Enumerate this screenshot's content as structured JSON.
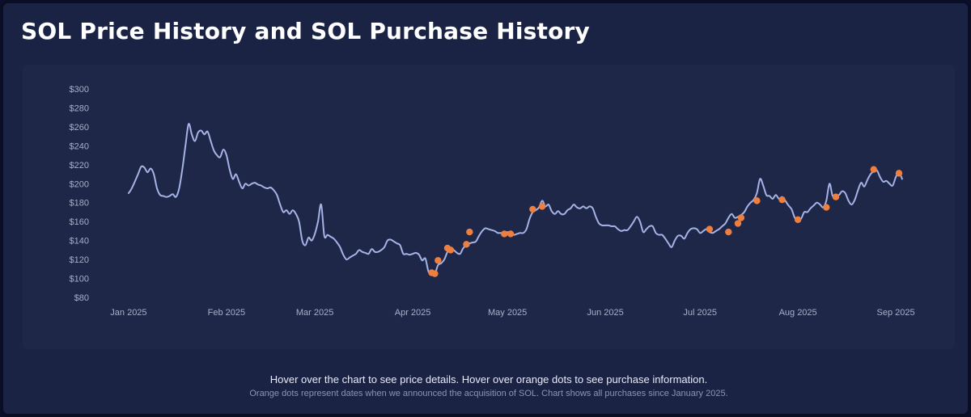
{
  "page": {
    "title": "SOL Price History and SOL Purchase History",
    "hint": "Hover over the chart to see price details. Hover over orange dots to see purchase information.",
    "note": "Orange dots represent dates when we announced the acquisition of SOL. Chart shows all purchases since January 2025."
  },
  "colors": {
    "background": "#1b2345",
    "plot_background": "#1f2748",
    "price_line": "#a6b3e6",
    "purchase_dot": "#ef7f3f",
    "text": "#ffffff",
    "axis_text": "#a8afc9"
  },
  "chart_data": {
    "type": "line",
    "title": "SOL Price History and SOL Purchase History",
    "xlabel": "",
    "ylabel": "",
    "grid": false,
    "y_unit_prefix": "$",
    "ylim": [
      80,
      300
    ],
    "yticks": [
      80,
      100,
      120,
      140,
      160,
      180,
      200,
      220,
      240,
      260,
      280,
      300
    ],
    "xlim": [
      "2024-12-21",
      "2025-09-12"
    ],
    "xticks": [
      {
        "date": "2025-01-01",
        "label": "Jan 2025"
      },
      {
        "date": "2025-02-01",
        "label": "Feb 2025"
      },
      {
        "date": "2025-03-01",
        "label": "Mar 2025"
      },
      {
        "date": "2025-04-01",
        "label": "Apr 2025"
      },
      {
        "date": "2025-05-01",
        "label": "May 2025"
      },
      {
        "date": "2025-06-01",
        "label": "Jun 2025"
      },
      {
        "date": "2025-07-01",
        "label": "Jul 2025"
      },
      {
        "date": "2025-08-01",
        "label": "Aug 2025"
      },
      {
        "date": "2025-09-01",
        "label": "Sep 2025"
      }
    ],
    "series": [
      {
        "type": "line",
        "points": [
          [
            "2025-01-01",
            190
          ],
          [
            "2025-01-02",
            195
          ],
          [
            "2025-01-04",
            210
          ],
          [
            "2025-01-05",
            218
          ],
          [
            "2025-01-06",
            217
          ],
          [
            "2025-01-07",
            212
          ],
          [
            "2025-01-08",
            216
          ],
          [
            "2025-01-09",
            210
          ],
          [
            "2025-01-10",
            195
          ],
          [
            "2025-01-11",
            188
          ],
          [
            "2025-01-12",
            187
          ],
          [
            "2025-01-13",
            186
          ],
          [
            "2025-01-14",
            187
          ],
          [
            "2025-01-15",
            189
          ],
          [
            "2025-01-16",
            186
          ],
          [
            "2025-01-17",
            195
          ],
          [
            "2025-01-18",
            215
          ],
          [
            "2025-01-19",
            240
          ],
          [
            "2025-01-20",
            263
          ],
          [
            "2025-01-21",
            252
          ],
          [
            "2025-01-22",
            245
          ],
          [
            "2025-01-23",
            254
          ],
          [
            "2025-01-24",
            256
          ],
          [
            "2025-01-25",
            252
          ],
          [
            "2025-01-26",
            255
          ],
          [
            "2025-01-27",
            245
          ],
          [
            "2025-01-28",
            235
          ],
          [
            "2025-01-29",
            230
          ],
          [
            "2025-01-30",
            228
          ],
          [
            "2025-01-31",
            236
          ],
          [
            "2025-02-01",
            230
          ],
          [
            "2025-02-02",
            215
          ],
          [
            "2025-02-03",
            205
          ],
          [
            "2025-02-04",
            210
          ],
          [
            "2025-02-05",
            202
          ],
          [
            "2025-02-06",
            195
          ],
          [
            "2025-02-07",
            200
          ],
          [
            "2025-02-08",
            198
          ],
          [
            "2025-02-09",
            200
          ],
          [
            "2025-02-10",
            201
          ],
          [
            "2025-02-11",
            199
          ],
          [
            "2025-02-12",
            198
          ],
          [
            "2025-02-13",
            196
          ],
          [
            "2025-02-14",
            195
          ],
          [
            "2025-02-15",
            196
          ],
          [
            "2025-02-16",
            193
          ],
          [
            "2025-02-17",
            188
          ],
          [
            "2025-02-18",
            178
          ],
          [
            "2025-02-19",
            170
          ],
          [
            "2025-02-20",
            172
          ],
          [
            "2025-02-21",
            168
          ],
          [
            "2025-02-22",
            172
          ],
          [
            "2025-02-23",
            168
          ],
          [
            "2025-02-24",
            160
          ],
          [
            "2025-02-25",
            140
          ],
          [
            "2025-02-26",
            135
          ],
          [
            "2025-02-27",
            143
          ],
          [
            "2025-02-28",
            140
          ],
          [
            "2025-03-01",
            147
          ],
          [
            "2025-03-02",
            160
          ],
          [
            "2025-03-03",
            178
          ],
          [
            "2025-03-04",
            145
          ],
          [
            "2025-03-05",
            146
          ],
          [
            "2025-03-06",
            144
          ],
          [
            "2025-03-07",
            142
          ],
          [
            "2025-03-08",
            138
          ],
          [
            "2025-03-09",
            133
          ],
          [
            "2025-03-10",
            125
          ],
          [
            "2025-03-11",
            120
          ],
          [
            "2025-03-12",
            122
          ],
          [
            "2025-03-13",
            124
          ],
          [
            "2025-03-14",
            126
          ],
          [
            "2025-03-15",
            130
          ],
          [
            "2025-03-16",
            128
          ],
          [
            "2025-03-17",
            127
          ],
          [
            "2025-03-18",
            126
          ],
          [
            "2025-03-19",
            131
          ],
          [
            "2025-03-20",
            128
          ],
          [
            "2025-03-21",
            128
          ],
          [
            "2025-03-22",
            130
          ],
          [
            "2025-03-23",
            133
          ],
          [
            "2025-03-24",
            140
          ],
          [
            "2025-03-25",
            141
          ],
          [
            "2025-03-26",
            139
          ],
          [
            "2025-03-27",
            137
          ],
          [
            "2025-03-28",
            135
          ],
          [
            "2025-03-29",
            126
          ],
          [
            "2025-03-30",
            126
          ],
          [
            "2025-03-31",
            125
          ],
          [
            "2025-04-01",
            126
          ],
          [
            "2025-04-02",
            127
          ],
          [
            "2025-04-03",
            125
          ],
          [
            "2025-04-04",
            119
          ],
          [
            "2025-04-05",
            121
          ],
          [
            "2025-04-06",
            107
          ],
          [
            "2025-04-07",
            106
          ],
          [
            "2025-04-08",
            105
          ],
          [
            "2025-04-09",
            114
          ],
          [
            "2025-04-10",
            116
          ],
          [
            "2025-04-11",
            120
          ],
          [
            "2025-04-12",
            128
          ],
          [
            "2025-04-13",
            132
          ],
          [
            "2025-04-14",
            130
          ],
          [
            "2025-04-15",
            127
          ],
          [
            "2025-04-16",
            126
          ],
          [
            "2025-04-17",
            132
          ],
          [
            "2025-04-18",
            135
          ],
          [
            "2025-04-19",
            137
          ],
          [
            "2025-04-20",
            138
          ],
          [
            "2025-04-21",
            139
          ],
          [
            "2025-04-22",
            145
          ],
          [
            "2025-04-23",
            150
          ],
          [
            "2025-04-24",
            153
          ],
          [
            "2025-04-25",
            152
          ],
          [
            "2025-04-26",
            151
          ],
          [
            "2025-04-27",
            150
          ],
          [
            "2025-04-28",
            148
          ],
          [
            "2025-04-29",
            148
          ],
          [
            "2025-04-30",
            147
          ],
          [
            "2025-05-01",
            149
          ],
          [
            "2025-05-02",
            148
          ],
          [
            "2025-05-03",
            146
          ],
          [
            "2025-05-04",
            147
          ],
          [
            "2025-05-05",
            148
          ],
          [
            "2025-05-06",
            148
          ],
          [
            "2025-05-07",
            152
          ],
          [
            "2025-05-08",
            163
          ],
          [
            "2025-05-09",
            170
          ],
          [
            "2025-05-10",
            172
          ],
          [
            "2025-05-11",
            175
          ],
          [
            "2025-05-12",
            182
          ],
          [
            "2025-05-13",
            176
          ],
          [
            "2025-05-14",
            178
          ],
          [
            "2025-05-15",
            171
          ],
          [
            "2025-05-16",
            168
          ],
          [
            "2025-05-17",
            171
          ],
          [
            "2025-05-18",
            168
          ],
          [
            "2025-05-19",
            168
          ],
          [
            "2025-05-20",
            172
          ],
          [
            "2025-05-21",
            174
          ],
          [
            "2025-05-22",
            178
          ],
          [
            "2025-05-23",
            175
          ],
          [
            "2025-05-24",
            174
          ],
          [
            "2025-05-25",
            176
          ],
          [
            "2025-05-26",
            174
          ],
          [
            "2025-05-27",
            176
          ],
          [
            "2025-05-28",
            174
          ],
          [
            "2025-05-29",
            165
          ],
          [
            "2025-05-30",
            158
          ],
          [
            "2025-05-31",
            156
          ],
          [
            "2025-06-01",
            156
          ],
          [
            "2025-06-02",
            156
          ],
          [
            "2025-06-03",
            155
          ],
          [
            "2025-06-04",
            155
          ],
          [
            "2025-06-05",
            152
          ],
          [
            "2025-06-06",
            150
          ],
          [
            "2025-06-07",
            151
          ],
          [
            "2025-06-08",
            151
          ],
          [
            "2025-06-09",
            155
          ],
          [
            "2025-06-10",
            160
          ],
          [
            "2025-06-11",
            165
          ],
          [
            "2025-06-12",
            160
          ],
          [
            "2025-06-13",
            149
          ],
          [
            "2025-06-14",
            152
          ],
          [
            "2025-06-15",
            155
          ],
          [
            "2025-06-16",
            155
          ],
          [
            "2025-06-17",
            148
          ],
          [
            "2025-06-18",
            146
          ],
          [
            "2025-06-19",
            146
          ],
          [
            "2025-06-20",
            142
          ],
          [
            "2025-06-21",
            137
          ],
          [
            "2025-06-22",
            133
          ],
          [
            "2025-06-23",
            140
          ],
          [
            "2025-06-24",
            145
          ],
          [
            "2025-06-25",
            145
          ],
          [
            "2025-06-26",
            142
          ],
          [
            "2025-06-27",
            148
          ],
          [
            "2025-06-28",
            152
          ],
          [
            "2025-06-29",
            153
          ],
          [
            "2025-06-30",
            152
          ],
          [
            "2025-07-01",
            148
          ],
          [
            "2025-07-02",
            150
          ],
          [
            "2025-07-03",
            152
          ],
          [
            "2025-07-04",
            149
          ],
          [
            "2025-07-05",
            148
          ],
          [
            "2025-07-06",
            150
          ],
          [
            "2025-07-07",
            152
          ],
          [
            "2025-07-08",
            155
          ],
          [
            "2025-07-09",
            158
          ],
          [
            "2025-07-10",
            164
          ],
          [
            "2025-07-11",
            168
          ],
          [
            "2025-07-12",
            164
          ],
          [
            "2025-07-13",
            165
          ],
          [
            "2025-07-14",
            167
          ],
          [
            "2025-07-15",
            170
          ],
          [
            "2025-07-16",
            176
          ],
          [
            "2025-07-17",
            180
          ],
          [
            "2025-07-18",
            183
          ],
          [
            "2025-07-19",
            190
          ],
          [
            "2025-07-20",
            205
          ],
          [
            "2025-07-21",
            198
          ],
          [
            "2025-07-22",
            188
          ],
          [
            "2025-07-23",
            187
          ],
          [
            "2025-07-24",
            184
          ],
          [
            "2025-07-25",
            188
          ],
          [
            "2025-07-26",
            184
          ],
          [
            "2025-07-27",
            186
          ],
          [
            "2025-07-28",
            182
          ],
          [
            "2025-07-29",
            177
          ],
          [
            "2025-07-30",
            173
          ],
          [
            "2025-07-31",
            164
          ],
          [
            "2025-08-01",
            162
          ],
          [
            "2025-08-02",
            163
          ],
          [
            "2025-08-03",
            170
          ],
          [
            "2025-08-04",
            170
          ],
          [
            "2025-08-05",
            174
          ],
          [
            "2025-08-06",
            177
          ],
          [
            "2025-08-07",
            180
          ],
          [
            "2025-08-08",
            178
          ],
          [
            "2025-08-09",
            175
          ],
          [
            "2025-08-10",
            182
          ],
          [
            "2025-08-11",
            200
          ],
          [
            "2025-08-12",
            187
          ],
          [
            "2025-08-13",
            188
          ],
          [
            "2025-08-14",
            188
          ],
          [
            "2025-08-15",
            192
          ],
          [
            "2025-08-16",
            190
          ],
          [
            "2025-08-17",
            182
          ],
          [
            "2025-08-18",
            178
          ],
          [
            "2025-08-19",
            183
          ],
          [
            "2025-08-20",
            193
          ],
          [
            "2025-08-21",
            201
          ],
          [
            "2025-08-22",
            197
          ],
          [
            "2025-08-23",
            204
          ],
          [
            "2025-08-24",
            210
          ],
          [
            "2025-08-25",
            213
          ],
          [
            "2025-08-26",
            214
          ],
          [
            "2025-08-27",
            207
          ],
          [
            "2025-08-28",
            202
          ],
          [
            "2025-08-29",
            203
          ],
          [
            "2025-08-30",
            200
          ],
          [
            "2025-08-31",
            198
          ],
          [
            "2025-09-01",
            207
          ],
          [
            "2025-09-02",
            212
          ],
          [
            "2025-09-03",
            205
          ]
        ]
      },
      {
        "type": "scatter",
        "points": [
          [
            "2025-04-07",
            106
          ],
          [
            "2025-04-08",
            105
          ],
          [
            "2025-04-09",
            119
          ],
          [
            "2025-04-12",
            132
          ],
          [
            "2025-04-13",
            130
          ],
          [
            "2025-04-18",
            136
          ],
          [
            "2025-04-19",
            149
          ],
          [
            "2025-04-30",
            147
          ],
          [
            "2025-05-02",
            147
          ],
          [
            "2025-05-09",
            173
          ],
          [
            "2025-05-12",
            176
          ],
          [
            "2025-07-04",
            152
          ],
          [
            "2025-07-10",
            149
          ],
          [
            "2025-07-13",
            158
          ],
          [
            "2025-07-14",
            164
          ],
          [
            "2025-07-19",
            182
          ],
          [
            "2025-07-27",
            183
          ],
          [
            "2025-08-01",
            162
          ],
          [
            "2025-08-10",
            175
          ],
          [
            "2025-08-13",
            186
          ],
          [
            "2025-08-25",
            215
          ],
          [
            "2025-09-02",
            211
          ]
        ]
      }
    ]
  }
}
